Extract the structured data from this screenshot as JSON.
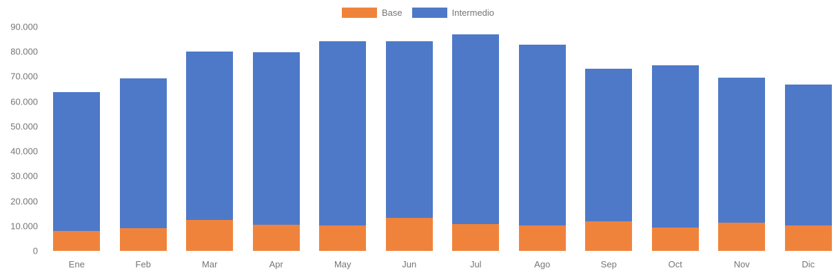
{
  "chart_data": {
    "type": "bar",
    "stacked": true,
    "title": "",
    "xlabel": "",
    "ylabel": "",
    "categories": [
      "Ene",
      "Feb",
      "Mar",
      "Apr",
      "May",
      "Jun",
      "Jul",
      "Ago",
      "Sep",
      "Oct",
      "Nov",
      "Dic"
    ],
    "series": [
      {
        "name": "Base",
        "color": "#F0833C",
        "values": [
          8100,
          9100,
          12400,
          10400,
          10100,
          13300,
          10900,
          10300,
          11900,
          9300,
          11200,
          10100
        ]
      },
      {
        "name": "Intermedio",
        "color": "#4E79C8",
        "values": [
          55600,
          60100,
          67600,
          69400,
          74000,
          71000,
          76200,
          72400,
          61200,
          65200,
          58400,
          56800
        ]
      }
    ],
    "totals": [
      63700,
      69200,
      80000,
      79800,
      84100,
      84300,
      87100,
      82700,
      73100,
      74500,
      69600,
      66900
    ],
    "ylim": [
      0,
      90000
    ],
    "y_ticks": [
      {
        "value": 0,
        "label": "0"
      },
      {
        "value": 10000,
        "label": "10.000"
      },
      {
        "value": 20000,
        "label": "20.000"
      },
      {
        "value": 30000,
        "label": "30.000"
      },
      {
        "value": 40000,
        "label": "40.000"
      },
      {
        "value": 50000,
        "label": "50.000"
      },
      {
        "value": 60000,
        "label": "60.000"
      },
      {
        "value": 70000,
        "label": "70.000"
      },
      {
        "value": 80000,
        "label": "80.000"
      },
      {
        "value": 90000,
        "label": "90.000"
      }
    ],
    "grid": false,
    "legend_position": "top",
    "text_color": "#757575",
    "background_color": "#ffffff"
  }
}
